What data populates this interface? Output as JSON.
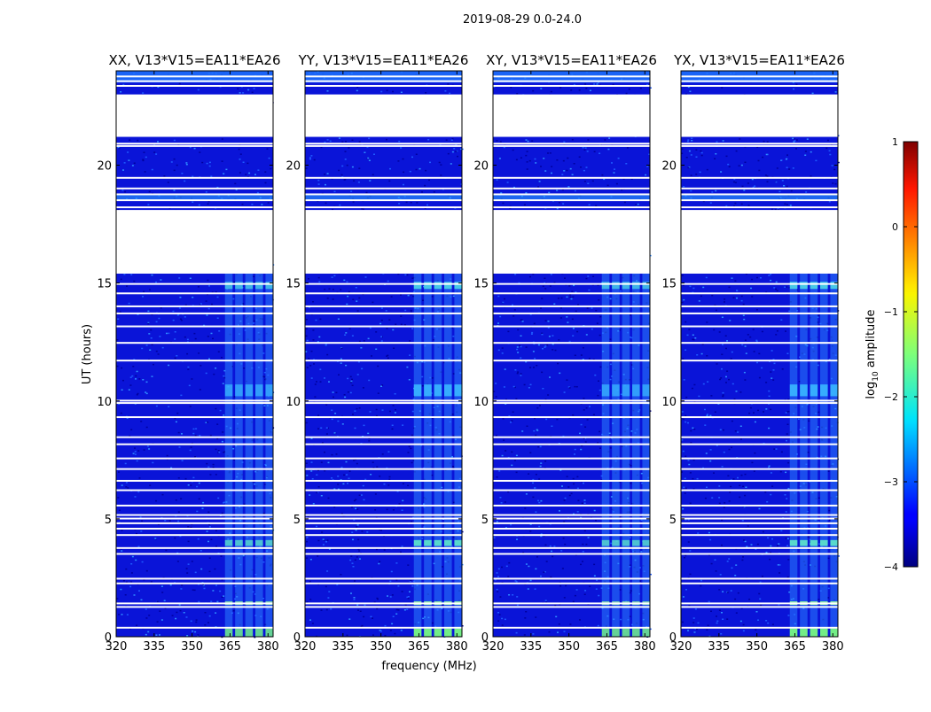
{
  "chart_data": {
    "type": "heatmap",
    "suptitle": "2019-08-29 0.0-24.0",
    "panels": [
      {
        "title": "XX, V13*V15=EA11*EA26",
        "polarization": "XX"
      },
      {
        "title": "YY, V13*V15=EA11*EA26",
        "polarization": "YY"
      },
      {
        "title": "XY, V13*V15=EA11*EA26",
        "polarization": "XY"
      },
      {
        "title": "YX, V13*V15=EA11*EA26",
        "polarization": "YX"
      }
    ],
    "xlabel": "frequency (MHz)",
    "ylabel": "UT (hours)",
    "xlim": [
      320,
      382
    ],
    "ylim": [
      0,
      24
    ],
    "xticks": [
      320,
      335,
      350,
      365,
      380
    ],
    "yticks": [
      0,
      5,
      10,
      15,
      20
    ],
    "colorbar": {
      "label_prefix": "log",
      "label_sub": "10",
      "label_suffix": " amplitude",
      "range": [
        -4,
        1
      ],
      "ticks": [
        1,
        0,
        -1,
        -2,
        -3,
        -4
      ],
      "colormap": "jet"
    },
    "flagged_ut_ranges": [
      [
        21.2,
        23.0
      ],
      [
        18.1,
        15.4
      ]
    ],
    "rfi_band_mhz": [
      363,
      380
    ]
  }
}
